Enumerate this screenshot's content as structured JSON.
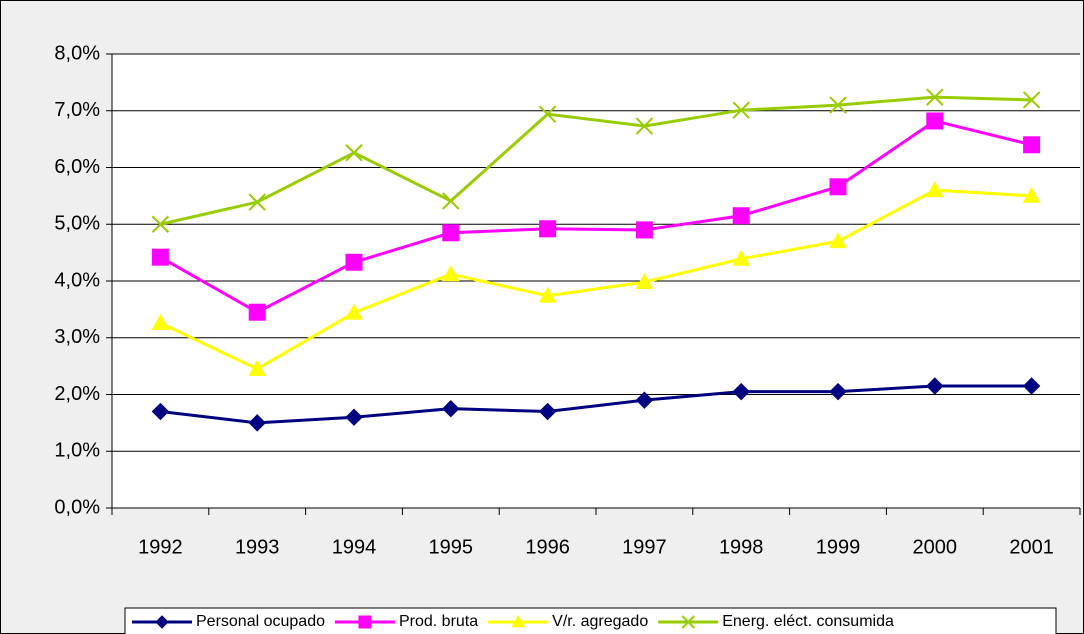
{
  "chart_data": {
    "type": "line",
    "categories": [
      "1992",
      "1993",
      "1994",
      "1995",
      "1996",
      "1997",
      "1998",
      "1999",
      "2000",
      "2001"
    ],
    "series": [
      {
        "name": "Personal ocupado",
        "color": "#000080",
        "marker": "diamond",
        "values": [
          1.7,
          1.5,
          1.6,
          1.75,
          1.7,
          1.9,
          2.05,
          2.05,
          2.15,
          2.15
        ]
      },
      {
        "name": "Prod. bruta",
        "color": "#ff00ff",
        "marker": "square",
        "values": [
          4.42,
          3.45,
          4.33,
          4.85,
          4.92,
          4.9,
          5.15,
          5.66,
          6.82,
          6.4
        ]
      },
      {
        "name": "V/r. agregado",
        "color": "#ffff00",
        "marker": "triangle",
        "values": [
          3.26,
          2.45,
          3.44,
          4.12,
          3.74,
          3.98,
          4.39,
          4.7,
          5.6,
          5.5
        ]
      },
      {
        "name": "Energ. eléct. consumida",
        "color": "#99cc00",
        "marker": "x",
        "values": [
          5.0,
          5.39,
          6.26,
          5.41,
          6.94,
          6.73,
          7.01,
          7.1,
          7.24,
          7.19
        ]
      }
    ],
    "ylim": [
      0,
      8
    ],
    "yticks": [
      {
        "value": 0,
        "label": "0,0%"
      },
      {
        "value": 1,
        "label": "1,0%"
      },
      {
        "value": 2,
        "label": "2,0%"
      },
      {
        "value": 3,
        "label": "3,0%"
      },
      {
        "value": 4,
        "label": "4,0%"
      },
      {
        "value": 5,
        "label": "5,0%"
      },
      {
        "value": 6,
        "label": "6,0%"
      },
      {
        "value": 7,
        "label": "7,0%"
      },
      {
        "value": 8,
        "label": "8,0%"
      }
    ],
    "grid": true,
    "legend": "bottom"
  }
}
